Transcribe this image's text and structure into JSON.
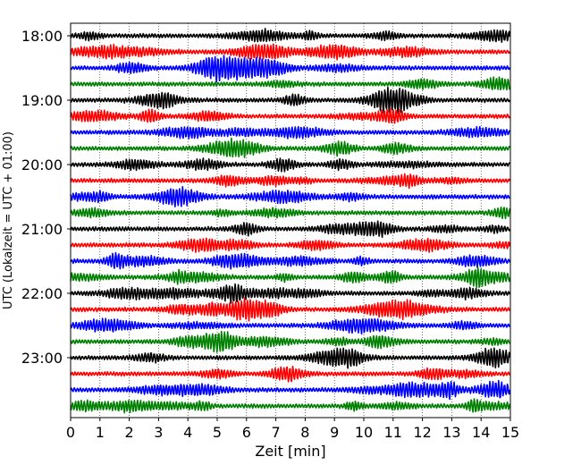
{
  "chart_data": {
    "type": "line",
    "title": "",
    "xlabel": "Zeit  [min]",
    "ylabel": "UTC (Lokalzeit = UTC + 01:00)",
    "xlim": [
      0,
      15
    ],
    "x_ticks": [
      0,
      1,
      2,
      3,
      4,
      5,
      6,
      7,
      8,
      9,
      10,
      11,
      12,
      13,
      14,
      15
    ],
    "x_tick_labels": [
      "0",
      "1",
      "2",
      "3",
      "4",
      "5",
      "6",
      "7",
      "8",
      "9",
      "10",
      "11",
      "12",
      "13",
      "14",
      "15"
    ],
    "y_ticks": [
      "18:00",
      "19:00",
      "20:00",
      "21:00",
      "22:00",
      "23:00"
    ],
    "trace_start": "18:00",
    "trace_interval_min": 15,
    "trace_count": 24,
    "color_cycle": [
      "#000000",
      "#ff0000",
      "#0000ff",
      "#008000"
    ],
    "grid": "vertical dotted",
    "legend": "none",
    "traces_description": "Seismogram helicorder display, one 15-minute trace per row, amplitude noise shown in repeating black/red/blue/green"
  }
}
